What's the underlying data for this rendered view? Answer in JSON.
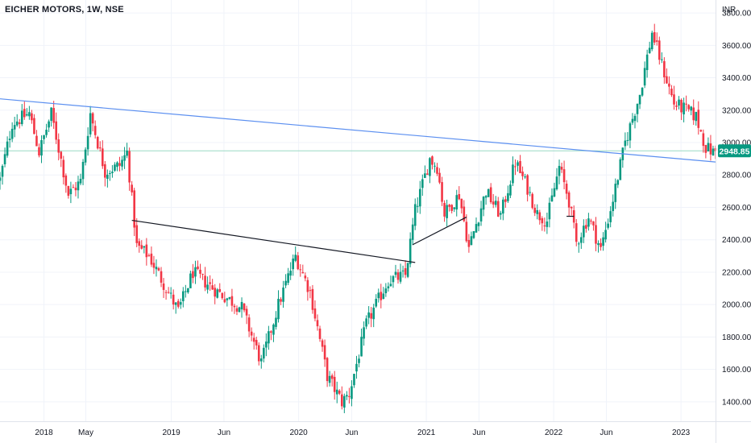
{
  "chart_title": "EICHER MOTORS, 1W, NSE",
  "chart_data": {
    "type": "candlestick",
    "title": "EICHER MOTORS, 1W, NSE",
    "symbol": "EICHER MOTORS",
    "interval": "1W",
    "exchange": "NSE",
    "currency_label": "INR",
    "last_price": "2948.85",
    "last_price_value": 2948.85,
    "ylim": [
      1280,
      3880
    ],
    "y_ticks": [
      1400,
      1600,
      1800,
      2000,
      2200,
      2400,
      2600,
      2800,
      3000,
      3200,
      3400,
      3600,
      3800
    ],
    "y_tick_labels": [
      "1400.00",
      "1600.00",
      "1800.00",
      "2000.00",
      "2200.00",
      "2400.00",
      "2600.00",
      "2800.00",
      "3000.00",
      "3200.00",
      "3400.00",
      "3600.00",
      "3800.00"
    ],
    "x_start": "2017-08-28",
    "x_end": "2023-04-10",
    "x_ticks": [
      {
        "date": "2018-01-01",
        "label": "2018"
      },
      {
        "date": "2018-05-01",
        "label": "May"
      },
      {
        "date": "2019-01-01",
        "label": "2019"
      },
      {
        "date": "2019-06-01",
        "label": "Jun"
      },
      {
        "date": "2020-01-01",
        "label": "2020"
      },
      {
        "date": "2020-06-01",
        "label": "Jun"
      },
      {
        "date": "2021-01-01",
        "label": "2021"
      },
      {
        "date": "2021-06-01",
        "label": "Jun"
      },
      {
        "date": "2022-01-01",
        "label": "2022"
      },
      {
        "date": "2022-06-01",
        "label": "Jun"
      },
      {
        "date": "2023-01-01",
        "label": "2023"
      }
    ],
    "price_path": [
      [
        "2017-08-28",
        2770
      ],
      [
        "2017-10-02",
        3120
      ],
      [
        "2017-11-20",
        3180
      ],
      [
        "2017-12-18",
        2940
      ],
      [
        "2018-01-22",
        3180
      ],
      [
        "2018-03-12",
        2680
      ],
      [
        "2018-04-16",
        2760
      ],
      [
        "2018-05-14",
        3180
      ],
      [
        "2018-06-25",
        2820
      ],
      [
        "2018-08-06",
        2860
      ],
      [
        "2018-08-27",
        2940
      ],
      [
        "2018-09-24",
        2360
      ],
      [
        "2018-10-29",
        2300
      ],
      [
        "2019-01-21",
        1960
      ],
      [
        "2019-03-04",
        2200
      ],
      [
        "2019-05-13",
        2080
      ],
      [
        "2019-07-22",
        1980
      ],
      [
        "2019-09-16",
        1640
      ],
      [
        "2019-11-04",
        2000
      ],
      [
        "2019-12-23",
        2300
      ],
      [
        "2020-02-03",
        2080
      ],
      [
        "2020-03-23",
        1560
      ],
      [
        "2020-05-04",
        1400
      ],
      [
        "2020-05-25",
        1450
      ],
      [
        "2020-07-13",
        1880
      ],
      [
        "2020-09-14",
        2150
      ],
      [
        "2020-11-02",
        2180
      ],
      [
        "2020-11-30",
        2580
      ],
      [
        "2021-01-11",
        2900
      ],
      [
        "2021-02-01",
        2850
      ],
      [
        "2021-02-22",
        2560
      ],
      [
        "2021-04-05",
        2680
      ],
      [
        "2021-05-03",
        2350
      ],
      [
        "2021-06-21",
        2700
      ],
      [
        "2021-08-02",
        2550
      ],
      [
        "2021-09-13",
        2880
      ],
      [
        "2021-10-18",
        2720
      ],
      [
        "2021-11-15",
        2560
      ],
      [
        "2021-12-13",
        2520
      ],
      [
        "2022-01-17",
        2850
      ],
      [
        "2022-02-14",
        2640
      ],
      [
        "2022-03-07",
        2380
      ],
      [
        "2022-04-11",
        2540
      ],
      [
        "2022-05-16",
        2340
      ],
      [
        "2022-06-20",
        2650
      ],
      [
        "2022-07-25",
        3000
      ],
      [
        "2022-09-05",
        3300
      ],
      [
        "2022-10-10",
        3680
      ],
      [
        "2022-11-07",
        3480
      ],
      [
        "2022-12-12",
        3240
      ],
      [
        "2023-01-16",
        3200
      ],
      [
        "2023-02-13",
        3160
      ],
      [
        "2023-03-13",
        2970
      ],
      [
        "2023-04-03",
        2940
      ],
      [
        "2023-04-10",
        2948.85
      ]
    ],
    "trend_lines": [
      {
        "name": "upper-trendline",
        "color": "#5b8ff0",
        "from": [
          "2017-08-28",
          3270
        ],
        "to": [
          "2023-04-10",
          2880
        ]
      },
      {
        "name": "lower-trendline",
        "color": "#131722",
        "from": [
          "2018-09-10",
          2520
        ],
        "to": [
          "2020-11-30",
          2260
        ]
      },
      {
        "name": "short-trendline",
        "color": "#131722",
        "from": [
          "2020-11-23",
          2370
        ],
        "to": [
          "2021-04-26",
          2540
        ]
      },
      {
        "name": "short-flat-line",
        "color": "#131722",
        "from": [
          "2022-02-07",
          2545
        ],
        "to": [
          "2022-02-28",
          2545
        ]
      }
    ],
    "horizontal_level": {
      "value": 2948.85,
      "color": "#9ad9c4"
    },
    "colors": {
      "up": "#089981",
      "down": "#f23645",
      "grid": "#f0f3fa",
      "axis_text": "#131722",
      "price_tag": "#089981"
    }
  }
}
